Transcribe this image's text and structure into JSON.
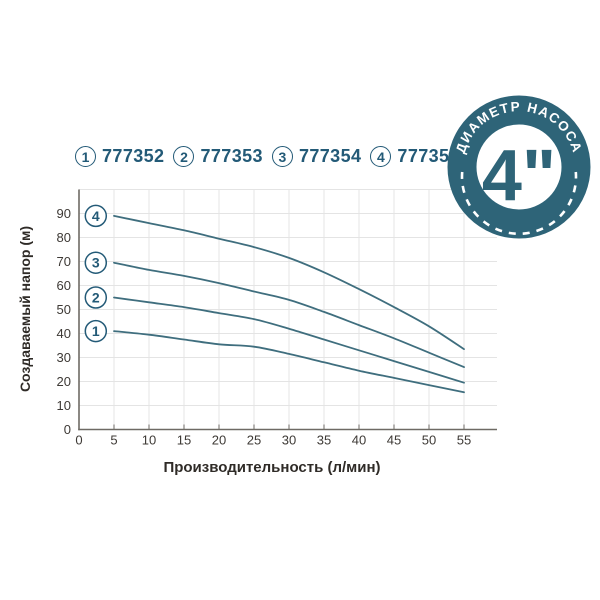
{
  "legend": {
    "items": [
      {
        "number": "1",
        "code": "777352"
      },
      {
        "number": "2",
        "code": "777353"
      },
      {
        "number": "3",
        "code": "777354"
      },
      {
        "number": "4",
        "code": "777355"
      }
    ]
  },
  "badge": {
    "arc_text": "ДИАМЕТР НАСОСА",
    "center_text": "4\""
  },
  "chart_data": {
    "type": "line",
    "xlabel": "Производительность (л/мин)",
    "ylabel": "Создаваемый напор (м)",
    "xlim": [
      0,
      57.5
    ],
    "ylim": [
      0,
      100
    ],
    "x_ticks": [
      0,
      5,
      10,
      15,
      20,
      25,
      30,
      35,
      40,
      45,
      50,
      55
    ],
    "y_ticks": [
      0,
      10,
      20,
      30,
      40,
      50,
      60,
      70,
      80,
      90
    ],
    "grid": true,
    "legend_position": "top",
    "series": [
      {
        "name": "777352",
        "curve_label": "1",
        "points": [
          [
            5,
            41
          ],
          [
            10,
            39.5
          ],
          [
            15,
            37.5
          ],
          [
            20,
            35.5
          ],
          [
            25,
            34.5
          ],
          [
            30,
            31.5
          ],
          [
            35,
            28
          ],
          [
            40,
            24.5
          ],
          [
            45,
            21.5
          ],
          [
            50,
            18.5
          ],
          [
            55,
            15.5
          ]
        ]
      },
      {
        "name": "777353",
        "curve_label": "2",
        "points": [
          [
            5,
            55
          ],
          [
            10,
            53
          ],
          [
            15,
            51
          ],
          [
            20,
            48.5
          ],
          [
            25,
            46
          ],
          [
            30,
            42
          ],
          [
            35,
            37.5
          ],
          [
            40,
            33
          ],
          [
            45,
            28.5
          ],
          [
            50,
            24
          ],
          [
            55,
            19.5
          ]
        ]
      },
      {
        "name": "777354",
        "curve_label": "3",
        "points": [
          [
            5,
            69.5
          ],
          [
            10,
            66.5
          ],
          [
            15,
            64
          ],
          [
            20,
            61
          ],
          [
            25,
            57.5
          ],
          [
            30,
            54
          ],
          [
            35,
            49
          ],
          [
            40,
            43.5
          ],
          [
            45,
            38
          ],
          [
            50,
            32
          ],
          [
            55,
            26
          ]
        ]
      },
      {
        "name": "777355",
        "curve_label": "4",
        "points": [
          [
            5,
            89
          ],
          [
            10,
            86
          ],
          [
            15,
            83
          ],
          [
            20,
            79.5
          ],
          [
            25,
            76
          ],
          [
            30,
            71.5
          ],
          [
            35,
            65.5
          ],
          [
            40,
            58.5
          ],
          [
            45,
            51
          ],
          [
            50,
            43
          ],
          [
            55,
            33.5
          ]
        ]
      }
    ]
  },
  "colors": {
    "accent_text": "#235a77",
    "curve": "#3f6e7e",
    "badge_ring": "#2e6478",
    "grid": "#e4e4e4",
    "axis": "#6e6a64",
    "tick_text": "#3d3935"
  }
}
